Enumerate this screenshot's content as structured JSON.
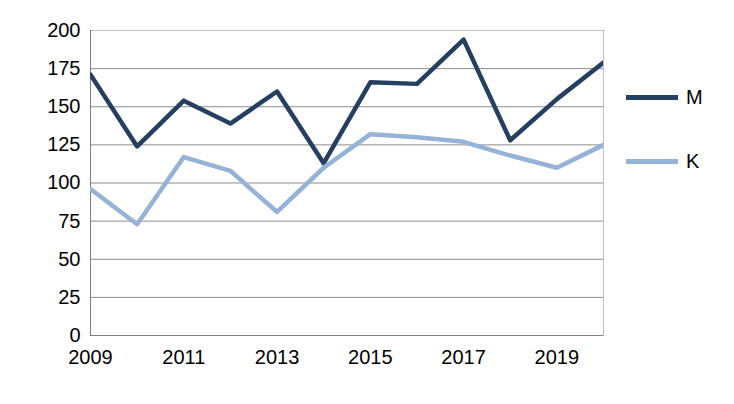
{
  "chart_data": {
    "type": "line",
    "x": [
      2009,
      2010,
      2011,
      2012,
      2013,
      2014,
      2015,
      2016,
      2017,
      2018,
      2019,
      2020
    ],
    "series": [
      {
        "name": "M",
        "color": "#243f60",
        "values": [
          171,
          124,
          154,
          139,
          160,
          113,
          166,
          165,
          194,
          128,
          155,
          179
        ]
      },
      {
        "name": "K",
        "color": "#95b3d7",
        "values": [
          96,
          73,
          117,
          108,
          81,
          110,
          132,
          130,
          127,
          118,
          110,
          125
        ]
      }
    ],
    "xlim": [
      2009,
      2020
    ],
    "xticks": [
      2009,
      2011,
      2013,
      2015,
      2017,
      2019
    ],
    "ylim": [
      0,
      200
    ],
    "yticks": [
      0,
      25,
      50,
      75,
      100,
      125,
      150,
      175,
      200
    ],
    "grid": true,
    "legend": "right"
  }
}
